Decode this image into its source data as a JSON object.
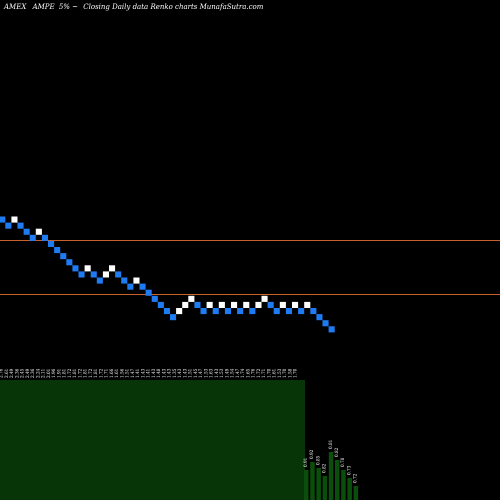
{
  "header": {
    "exchange": "AMEX",
    "symbol": "AMPE",
    "change": "5% ~",
    "caption": "Closing Daily data  Renko  charts MunafaSutra.com"
  },
  "colors": {
    "background": "#000000",
    "up_brick": "#ffffff",
    "down_brick": "#1e7bf2",
    "resistance_line": "#c8622a",
    "volume_fill": "#073507",
    "volume_bar": "#0b4d0b"
  },
  "chart_data": {
    "type": "renko",
    "title": "AMEX  AMPE 5% ~   Closing Daily data  Renko  charts MunafaSutra.com",
    "bricks": {
      "directions": [
        "down",
        "down",
        "up",
        "down",
        "down",
        "down",
        "up",
        "down",
        "down",
        "down",
        "down",
        "down",
        "down",
        "down",
        "up",
        "down",
        "down",
        "up",
        "up",
        "down",
        "down",
        "down",
        "up",
        "down",
        "down",
        "down",
        "down",
        "down",
        "down",
        "up",
        "up",
        "up",
        "down",
        "down",
        "up",
        "down",
        "up",
        "down",
        "up",
        "down",
        "up",
        "down",
        "up",
        "up",
        "down",
        "down",
        "up",
        "down",
        "up",
        "down",
        "up",
        "down",
        "down",
        "down",
        "down"
      ],
      "levels_in_bricks_from_top": [
        0,
        1,
        0,
        1,
        2,
        3,
        2,
        3,
        4,
        5,
        6,
        7,
        8,
        9,
        8,
        9,
        10,
        9,
        8,
        9,
        10,
        11,
        10,
        11,
        12,
        13,
        14,
        15,
        16,
        15,
        14,
        13,
        14,
        15,
        14,
        15,
        14,
        15,
        14,
        15,
        14,
        15,
        14,
        13,
        14,
        15,
        14,
        15,
        14,
        15,
        14,
        15,
        16,
        17,
        18
      ],
      "up_color": "white",
      "down_color": "blue"
    },
    "reference_lines": [
      "upper",
      "lower"
    ],
    "volume_labels": [
      "2.76",
      "2.61",
      "2.49",
      "2.36",
      "2.45",
      "2.49",
      "2.36",
      "2.24",
      "2.11",
      "2.01",
      "1.96",
      "1.91",
      "1.81",
      "1.72",
      "1.81",
      "1.72",
      "1.81",
      "1.72",
      "1.81",
      "1.72",
      "1.71",
      "1.66",
      "1.61",
      "1.56",
      "1.51",
      "1.47",
      "1.41",
      "1.43",
      "1.41",
      "1.43",
      "1.48",
      "1.43",
      "1.43",
      "1.35",
      "1.43",
      "1.43",
      "1.51",
      "1.45",
      "1.47",
      "1.53",
      "1.63",
      "1.43",
      "1.53",
      "1.49",
      "1.54",
      "1.47",
      "1.74",
      "1.65",
      "1.76",
      "1.72",
      "1.71",
      "1.70",
      "1.61",
      "1.53",
      "1.70",
      "1.58",
      "1.70"
    ],
    "tail_labels": [
      "0.91",
      "0.92",
      "0.85",
      "0.82",
      "0.81",
      "0.82",
      "0.78",
      "0.73",
      "0.72"
    ]
  }
}
